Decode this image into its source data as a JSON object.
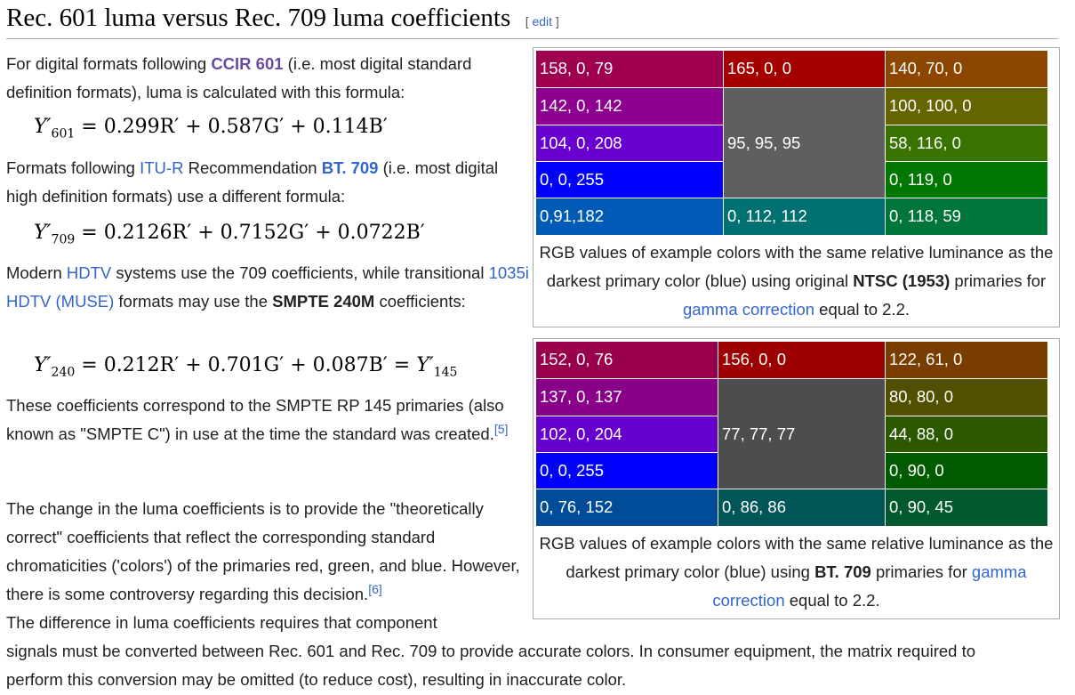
{
  "heading": {
    "title": "Rec. 601 luma versus Rec. 709 luma coefficients",
    "edit": "edit"
  },
  "para1": {
    "t1": "For digital formats following ",
    "link": "CCIR 601",
    "t2": " (i.e. most digital standard definition formats), luma is calculated with this formula:"
  },
  "formula601": {
    "lhs": "Y′",
    "sub": "601",
    "rhs": "= 0.299R′ + 0.587G′ + 0.114B′"
  },
  "para2": {
    "t1": "Formats following ",
    "link1": "ITU-R",
    "t2": " Recommendation ",
    "link2": "BT. 709",
    "t3": " (i.e. most digital high definition formats) use a different formula:"
  },
  "formula709": {
    "lhs": "Y′",
    "sub": "709",
    "rhs": "= 0.2126R′ + 0.7152G′ + 0.0722B′"
  },
  "para3": {
    "t1": "Modern ",
    "link1": "HDTV",
    "t2": " systems use the 709 coefficients, while transitional ",
    "link2": "1035i HDTV (MUSE)",
    "t3": " formats may use the ",
    "bold": "SMPTE 240M",
    "t4": " coefficients:"
  },
  "formula240": {
    "lhs": "Y′",
    "sub": "240",
    "rhs": "= 0.212R′ + 0.701G′ + 0.087B′ = ",
    "lhs2": "Y′",
    "sub2": "145"
  },
  "para4": {
    "t1": "These coefficients correspond to the SMPTE RP 145 primaries (also known as \"SMPTE C\") in use at the time the standard was created.",
    "ref": "[5]"
  },
  "para5": {
    "t1": "The change in the luma coefficients is to provide the \"theoretically correct\" coefficients that reflect the corresponding standard chromaticities ('colors') of the primaries red, green, and blue. However, there is some controversy regarding this decision.",
    "ref": "[6]"
  },
  "para6": {
    "line1": "The difference in luma coefficients requires that component",
    "line2": "signals must be converted between Rec. 601 and Rec. 709 to provide accurate colors. In consumer equipment, the matrix required to",
    "line3": "perform this conversion may be omitted (to reduce cost), resulting in inaccurate color."
  },
  "figure1": {
    "cells": [
      {
        "label": "158, 0, 79",
        "color": "#9e004f"
      },
      {
        "label": "165, 0, 0",
        "color": "#a50000"
      },
      {
        "label": "140, 70, 0",
        "color": "#8c4600"
      },
      {
        "label": "142, 0, 142",
        "color": "#8e008e"
      },
      {
        "label": "95, 95, 95",
        "color": "#5f5f5f"
      },
      {
        "label": "100, 100, 0",
        "color": "#646400"
      },
      {
        "label": "104, 0, 208",
        "color": "#6800d0"
      },
      {
        "label": "58, 116, 0",
        "color": "#3a7400"
      },
      {
        "label": "0, 0, 255",
        "color": "#0000ff"
      },
      {
        "label": "0, 119, 0",
        "color": "#007700"
      },
      {
        "label": "0,91,182",
        "color": "#005bb6"
      },
      {
        "label": "0, 112, 112",
        "color": "#007070"
      },
      {
        "label": "0, 118, 59",
        "color": "#00763b"
      }
    ],
    "caption": {
      "t1": "RGB values of example colors with the same relative luminance as the darkest primary color (blue) using original ",
      "bold": "NTSC (1953)",
      "t2": " primaries for ",
      "link": "gamma correction",
      "t3": " equal to 2.2."
    }
  },
  "figure2": {
    "cells": [
      {
        "label": "152, 0, 76",
        "color": "#98004c"
      },
      {
        "label": "156, 0, 0",
        "color": "#9c0000"
      },
      {
        "label": "122, 61, 0",
        "color": "#7a3d00"
      },
      {
        "label": "137, 0, 137",
        "color": "#890089"
      },
      {
        "label": "77, 77, 77",
        "color": "#4d4d4d"
      },
      {
        "label": "80, 80, 0",
        "color": "#505000"
      },
      {
        "label": "102, 0, 204",
        "color": "#6600cc"
      },
      {
        "label": "44, 88, 0",
        "color": "#2c5800"
      },
      {
        "label": "0, 0, 255",
        "color": "#0000ff"
      },
      {
        "label": "0, 90, 0",
        "color": "#005a00"
      },
      {
        "label": "0, 76, 152",
        "color": "#004c98"
      },
      {
        "label": "0, 86, 86",
        "color": "#005656"
      },
      {
        "label": "0, 90, 45",
        "color": "#005a2d"
      }
    ],
    "caption": {
      "t1": "RGB values of example colors with the same relative luminance as the darkest primary color (blue) using ",
      "bold": "BT. 709",
      "t2": " primaries for ",
      "link": "gamma correction",
      "t3": " equal to 2.2."
    }
  }
}
